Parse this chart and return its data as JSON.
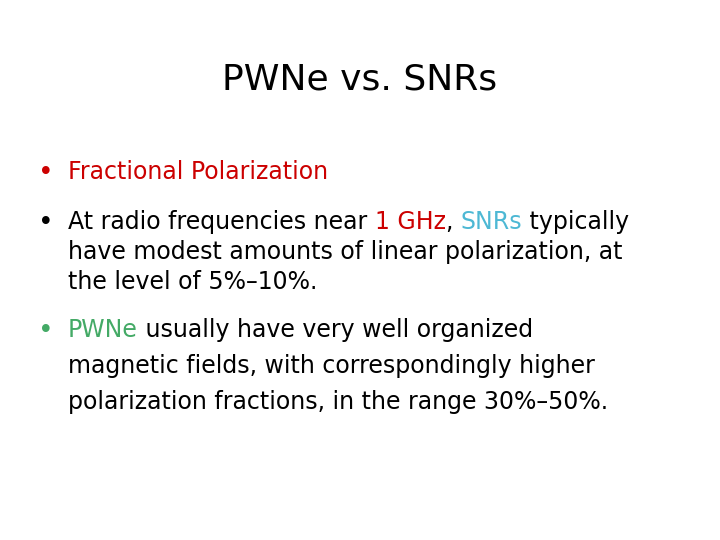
{
  "title": "PWNe vs. SNRs",
  "title_fontsize": 26,
  "title_color": "#000000",
  "background_color": "#ffffff",
  "bullet1_color": "#cc0000",
  "bullet1_text": "Fractional Polarization",
  "bullet2_1GHz_color": "#cc0000",
  "bullet2_SNRs_color": "#4db8d4",
  "bullet2_line2": "have modest amounts of linear polarization, at",
  "bullet2_line3": "the level of 5%–10%.",
  "bullet3_PWNe_color": "#44aa66",
  "bullet3_line2": "magnetic fields, with correspondingly higher",
  "bullet3_line3": "polarization fractions, in the range 30%–50%.",
  "bullet_color_black": "#000000",
  "body_fontsize": 17,
  "fig_width": 7.2,
  "fig_height": 5.4,
  "dpi": 100
}
